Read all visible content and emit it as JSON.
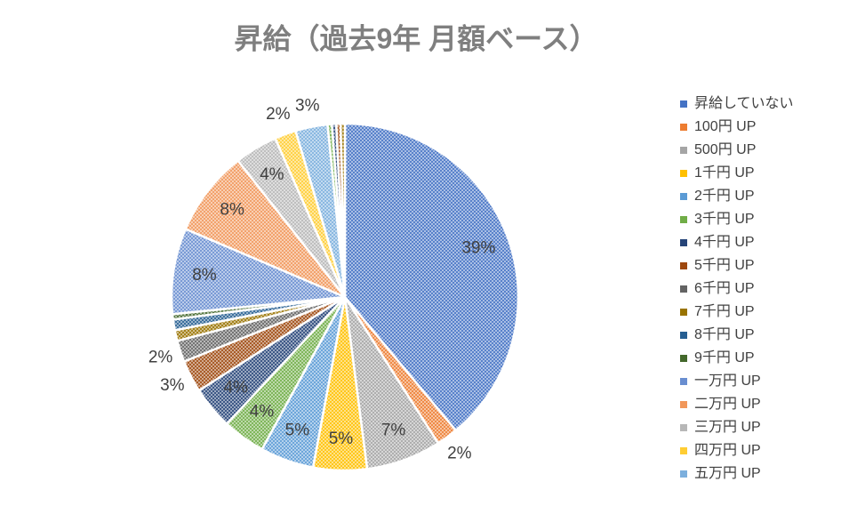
{
  "chart_data": {
    "type": "pie",
    "title": "昇給（過去9年 月額ベース）",
    "categories": [
      "昇給していない",
      "100円 UP",
      "500円 UP",
      "1千円 UP",
      "2千円 UP",
      "3千円 UP",
      "4千円 UP",
      "5千円 UP",
      "6千円 UP",
      "7千円 UP",
      "8千円 UP",
      "9千円 UP",
      "一万円 UP",
      "二万円 UP",
      "三万円 UP",
      "四万円 UP",
      "五万円 UP",
      null,
      null,
      null,
      null
    ],
    "values": [
      39,
      2,
      7,
      5,
      5,
      4,
      4,
      3,
      2,
      1,
      1,
      0.5,
      8,
      8,
      4,
      2,
      3,
      0.4,
      0.4,
      0.4,
      0.4
    ],
    "value_labels": [
      "39%",
      "2%",
      "7%",
      "5%",
      "5%",
      "4%",
      "4%",
      "3%",
      "2%",
      null,
      null,
      null,
      "8%",
      "8%",
      "4%",
      "2%",
      "3%",
      null,
      null,
      null,
      null
    ],
    "colors": [
      "#4472c4",
      "#ed7d31",
      "#a5a5a5",
      "#ffc000",
      "#5b9bd5",
      "#70ad47",
      "#264478",
      "#9e480e",
      "#636363",
      "#997300",
      "#255e91",
      "#43682b",
      "#698ed0",
      "#f1975a",
      "#b7b7b7",
      "#ffcd33",
      "#7cafdd",
      "#70ad47",
      "#264478",
      "#9e480e",
      "#997300"
    ],
    "legend": "right"
  }
}
